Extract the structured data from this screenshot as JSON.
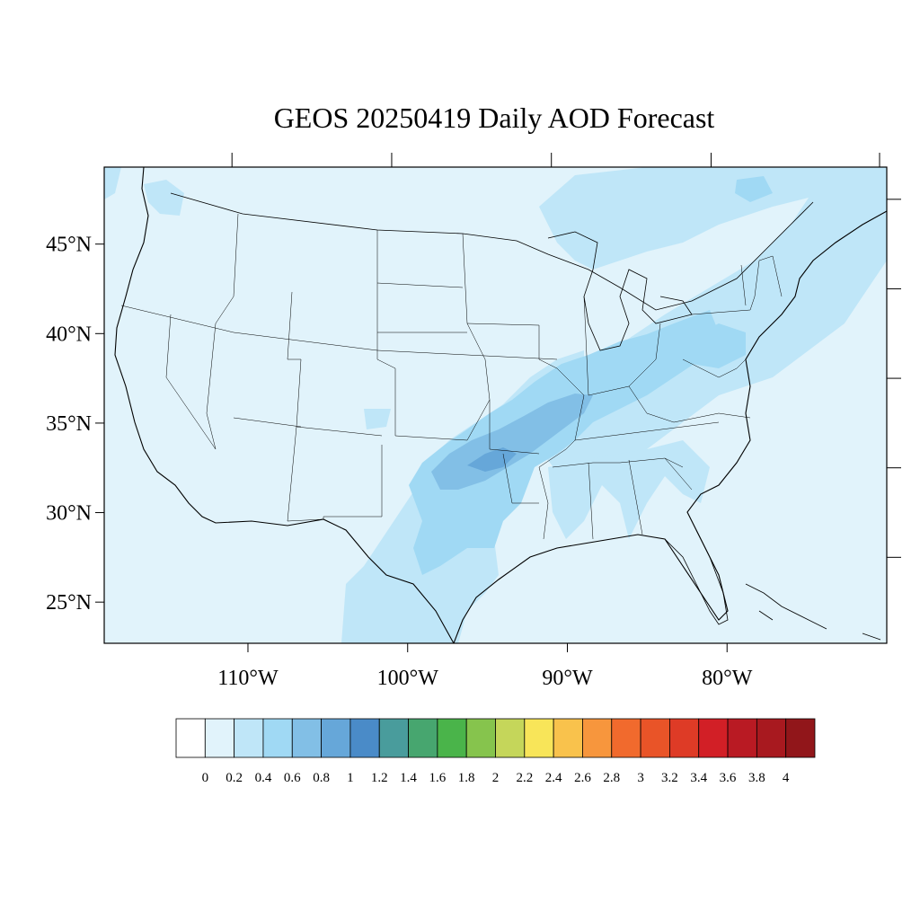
{
  "title": "GEOS 20250419 Daily AOD Forecast",
  "map": {
    "lon_range": [
      -119,
      -70
    ],
    "lat_range": [
      22.7,
      49.3
    ],
    "background_color": "#e1f3fb",
    "lat_labels": [
      {
        "lat": 45,
        "label": "45°N"
      },
      {
        "lat": 40,
        "label": "40°N"
      },
      {
        "lat": 35,
        "label": "35°N"
      },
      {
        "lat": 30,
        "label": "30°N"
      },
      {
        "lat": 25,
        "label": "25°N"
      }
    ],
    "lon_labels": [
      {
        "lon": -110,
        "label": "110°W"
      },
      {
        "lon": -100,
        "label": "100°W"
      },
      {
        "lon": -90,
        "label": "90°W"
      },
      {
        "lon": -80,
        "label": "80°W"
      }
    ],
    "top_ticks_lon": [
      -111,
      -101,
      -91,
      -81,
      -70
    ],
    "right_ticks_lat": [
      47,
      42,
      37,
      32,
      27
    ]
  },
  "colorbar": {
    "labels": [
      "0",
      "0.2",
      "0.4",
      "0.6",
      "0.8",
      "1",
      "1.2",
      "1.4",
      "1.6",
      "1.8",
      "2",
      "2.2",
      "2.4",
      "2.6",
      "2.8",
      "3",
      "3.2",
      "3.4",
      "3.6",
      "3.8",
      "4"
    ],
    "colors": [
      "#ffffff",
      "#e1f3fb",
      "#bfe6f8",
      "#a0d9f4",
      "#82bfe6",
      "#66a7d9",
      "#4a8bc8",
      "#499c9c",
      "#47a66f",
      "#4ab44a",
      "#86c44d",
      "#c5d65a",
      "#f8e559",
      "#f9c24c",
      "#f7963d",
      "#f16a2d",
      "#e95428",
      "#de3b26",
      "#d21f26",
      "#b91a23",
      "#a8191f",
      "#91161a"
    ]
  },
  "aod_regions": [
    {
      "name": "plume-0.2-0.4",
      "color": "#bfe6f8",
      "value": 0.3
    },
    {
      "name": "plume-0.4-0.6",
      "color": "#a0d9f4",
      "value": 0.5
    },
    {
      "name": "plume-0.6-0.8",
      "color": "#82bfe6",
      "value": 0.7
    }
  ]
}
